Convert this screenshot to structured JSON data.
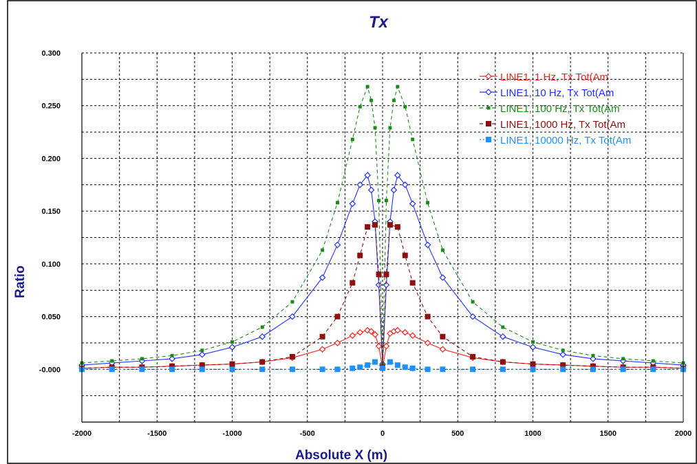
{
  "chart_data": {
    "type": "line",
    "title": "Tx",
    "xlabel": "Absolute X (m)",
    "ylabel": "Ratio",
    "xlim": [
      -2000,
      2000
    ],
    "ylim": [
      -0.05,
      0.3
    ],
    "grid": true,
    "legend_position": "top-right",
    "x_ticks": [
      -2000,
      -1500,
      -1000,
      -500,
      0,
      500,
      1000,
      1500,
      2000
    ],
    "x_tick_labels": [
      "-2000",
      "-1500",
      "-1000",
      "-500",
      "0",
      "500",
      "1000",
      "1500",
      "2000"
    ],
    "y_ticks": [
      0,
      0.05,
      0.1,
      0.15,
      0.2,
      0.25,
      0.3
    ],
    "y_tick_labels": [
      "-0.000",
      "0.050",
      "0.100",
      "0.150",
      "0.200",
      "0.250",
      "0.300"
    ],
    "series": [
      {
        "name": "LINE1, 1 Hz, Tx Tot(Am",
        "color": "#ff2020",
        "marker": "diamond",
        "dash": "solid",
        "x": [
          -2000,
          -1800,
          -1600,
          -1400,
          -1200,
          -1000,
          -800,
          -600,
          -400,
          -300,
          -200,
          -150,
          -100,
          -75,
          -50,
          -25,
          0,
          25,
          50,
          75,
          100,
          150,
          200,
          300,
          400,
          600,
          800,
          1000,
          1200,
          1400,
          1600,
          1800,
          2000
        ],
        "y": [
          0.001,
          0.002,
          0.002,
          0.003,
          0.004,
          0.005,
          0.007,
          0.011,
          0.019,
          0.025,
          0.032,
          0.035,
          0.037,
          0.036,
          0.033,
          0.022,
          0.001,
          0.022,
          0.034,
          0.036,
          0.037,
          0.035,
          0.032,
          0.025,
          0.019,
          0.011,
          0.007,
          0.005,
          0.004,
          0.003,
          0.002,
          0.002,
          0.001
        ]
      },
      {
        "name": "LINE1, 10 Hz, Tx Tot(Am",
        "color": "#2030ff",
        "marker": "diamond",
        "dash": "solid",
        "x": [
          -2000,
          -1800,
          -1600,
          -1400,
          -1200,
          -1000,
          -800,
          -600,
          -400,
          -300,
          -200,
          -150,
          -100,
          -75,
          -50,
          -25,
          0,
          25,
          50,
          75,
          100,
          150,
          200,
          300,
          400,
          600,
          800,
          1000,
          1200,
          1400,
          1600,
          1800,
          2000
        ],
        "y": [
          0.004,
          0.006,
          0.008,
          0.01,
          0.014,
          0.021,
          0.031,
          0.05,
          0.087,
          0.118,
          0.157,
          0.175,
          0.184,
          0.17,
          0.14,
          0.08,
          0.005,
          0.08,
          0.14,
          0.17,
          0.184,
          0.175,
          0.157,
          0.118,
          0.087,
          0.05,
          0.031,
          0.021,
          0.014,
          0.01,
          0.008,
          0.006,
          0.004
        ]
      },
      {
        "name": "LINE1, 100 Hz, Tx Tot(Am",
        "color": "#1a8a1a",
        "marker": "square-small",
        "dash": "dashed",
        "x": [
          -2000,
          -1800,
          -1600,
          -1400,
          -1200,
          -1000,
          -800,
          -600,
          -400,
          -300,
          -200,
          -150,
          -100,
          -75,
          -50,
          -25,
          0,
          25,
          50,
          75,
          100,
          150,
          200,
          300,
          400,
          600,
          800,
          1000,
          1200,
          1400,
          1600,
          1800,
          2000
        ],
        "y": [
          0.006,
          0.008,
          0.01,
          0.013,
          0.018,
          0.026,
          0.04,
          0.064,
          0.113,
          0.158,
          0.218,
          0.249,
          0.268,
          0.255,
          0.229,
          0.16,
          0.005,
          0.16,
          0.229,
          0.255,
          0.268,
          0.249,
          0.218,
          0.158,
          0.113,
          0.064,
          0.04,
          0.026,
          0.018,
          0.013,
          0.01,
          0.008,
          0.006
        ]
      },
      {
        "name": "LINE1, 1000 Hz, Tx Tot(Am",
        "color": "#8b1010",
        "marker": "square",
        "dash": "dashed",
        "x": [
          -2000,
          -1800,
          -1600,
          -1400,
          -1200,
          -1000,
          -800,
          -600,
          -400,
          -300,
          -200,
          -150,
          -100,
          -50,
          -25,
          0,
          25,
          50,
          100,
          150,
          200,
          300,
          400,
          600,
          800,
          1000,
          1200,
          1400,
          1600,
          1800,
          2000
        ],
        "y": [
          0.001,
          0.002,
          0.002,
          0.003,
          0.004,
          0.005,
          0.007,
          0.012,
          0.031,
          0.05,
          0.082,
          0.108,
          0.135,
          0.137,
          0.09,
          0.002,
          0.09,
          0.137,
          0.135,
          0.108,
          0.082,
          0.05,
          0.031,
          0.012,
          0.007,
          0.005,
          0.004,
          0.003,
          0.002,
          0.002,
          0.001
        ]
      },
      {
        "name": "LINE1, 10000 Hz, Tx Tot(Am",
        "color": "#1e90ff",
        "marker": "square",
        "dash": "dotted",
        "x": [
          -2000,
          -1800,
          -1600,
          -1400,
          -1200,
          -1000,
          -800,
          -600,
          -400,
          -300,
          -200,
          -150,
          -100,
          -50,
          0,
          50,
          100,
          150,
          200,
          300,
          400,
          600,
          800,
          1000,
          1200,
          1400,
          1600,
          1800,
          2000
        ],
        "y": [
          0.0,
          0.0,
          0.0,
          0.0,
          0.0,
          0.0,
          0.0,
          0.0,
          0.0,
          0.0,
          0.001,
          0.002,
          0.004,
          0.007,
          0.001,
          0.007,
          0.004,
          0.002,
          0.001,
          0.0,
          0.0,
          0.0,
          0.0,
          0.0,
          0.0,
          0.0,
          0.0,
          0.0,
          0.0
        ]
      }
    ]
  }
}
